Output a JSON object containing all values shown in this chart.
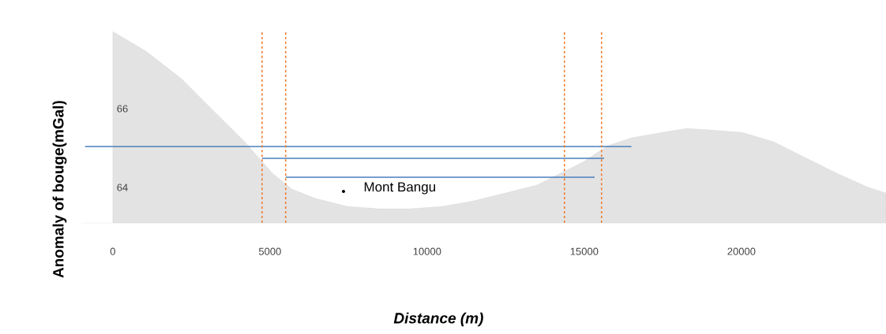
{
  "chart_data": {
    "type": "area",
    "xlabel": "Distance (m)",
    "ylabel": "Anomaly of bouge(mGal)",
    "xlim": [
      -1000,
      24600
    ],
    "ylim": [
      63.1,
      68
    ],
    "xticks": [
      0,
      5000,
      10000,
      15000,
      20000
    ],
    "yticks": [
      64,
      66
    ],
    "series": [
      {
        "color": "#e3e3e3",
        "x": [
          0,
          1060,
          2190,
          3190,
          4200,
          4750,
          5080,
          5700,
          6460,
          7460,
          8470,
          9470,
          10480,
          11480,
          12490,
          13490,
          14240,
          14990,
          15740,
          16500,
          17500,
          18260,
          19010,
          20020,
          21030,
          22030,
          23040,
          24050,
          24600
        ],
        "values": [
          67.96,
          67.46,
          66.76,
          65.96,
          65.16,
          64.66,
          64.36,
          63.96,
          63.72,
          63.52,
          63.46,
          63.46,
          63.52,
          63.66,
          63.86,
          64.06,
          64.36,
          64.66,
          65.06,
          65.26,
          65.4,
          65.5,
          65.46,
          65.4,
          65.16,
          64.76,
          64.36,
          64.0,
          63.86
        ]
      },
      {
        "type": "line",
        "color": "#4a7ebb",
        "x": [
          -880,
          16500
        ],
        "values": [
          65.04,
          65.04
        ]
      },
      {
        "type": "line",
        "color": "#4a7ebb",
        "x": [
          4750,
          15630
        ],
        "values": [
          64.74,
          64.74
        ]
      },
      {
        "type": "line",
        "color": "#4a7ebb",
        "x": [
          5500,
          15330
        ],
        "values": [
          64.26,
          64.26
        ]
      }
    ],
    "ref_lines": [
      {
        "axis": "x",
        "value": 4750,
        "color": "#ed7d31",
        "line_style": "dashed"
      },
      {
        "axis": "x",
        "value": 5500,
        "color": "#ed7d31",
        "line_style": "dashed"
      },
      {
        "axis": "x",
        "value": 14370,
        "color": "#ed7d31",
        "line_style": "dashed"
      },
      {
        "axis": "x",
        "value": 15550,
        "color": "#ed7d31",
        "line_style": "dashed"
      }
    ],
    "annotations": [
      {
        "text": "Mont Bangu",
        "x": 7340,
        "y": 63.9
      }
    ]
  }
}
